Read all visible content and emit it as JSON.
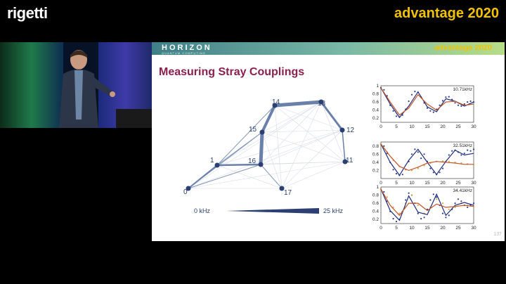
{
  "brand": {
    "left_logo": "rigetti",
    "right_logo": "advantage 2020"
  },
  "slide": {
    "header_logo": "HORIZON",
    "header_sub": "QUANTUM COMPUTING",
    "header_brand": "advantage 2020",
    "title": "Measuring Stray Couplings",
    "page_number": "137",
    "scale": {
      "min_label": "0 kHz",
      "max_label": "25 kHz"
    },
    "nodes": [
      "0",
      "1",
      "11",
      "12",
      "13",
      "14",
      "15",
      "16",
      "17"
    ],
    "colors": {
      "title": "#8b1f4f",
      "edge": "#3f5a8e",
      "node": "#2b3f72",
      "fit_blue": "#1f2d7a",
      "fit_orange": "#c1552b"
    }
  },
  "chart_data": [
    {
      "type": "line",
      "title": "10.71kHz",
      "x_ticks": [
        0,
        5,
        10,
        15,
        20,
        25,
        30
      ],
      "y_ticks": [
        0.2,
        0.4,
        0.6,
        0.8,
        1
      ],
      "xlim": [
        0,
        30
      ],
      "ylim": [
        0.1,
        1.0
      ],
      "series": [
        {
          "type": "scatter",
          "color": "#2b3f8e",
          "x": [
            0,
            1,
            2,
            3,
            4,
            5,
            6,
            7,
            8,
            9,
            10,
            11,
            12,
            13,
            14,
            15,
            16,
            17,
            18,
            19,
            20,
            21,
            22,
            23,
            24,
            25,
            26,
            27,
            28,
            29,
            30
          ],
          "y": [
            0.95,
            0.9,
            0.75,
            0.52,
            0.38,
            0.25,
            0.23,
            0.28,
            0.42,
            0.62,
            0.78,
            0.86,
            0.84,
            0.72,
            0.58,
            0.45,
            0.38,
            0.35,
            0.42,
            0.52,
            0.63,
            0.72,
            0.73,
            0.66,
            0.58,
            0.52,
            0.5,
            0.55,
            0.6,
            0.62,
            0.6
          ]
        },
        {
          "type": "line",
          "color": "#1f2d7a",
          "x": [
            0,
            3,
            6,
            9,
            12,
            15,
            18,
            21,
            24,
            27,
            30
          ],
          "y": [
            0.95,
            0.55,
            0.22,
            0.5,
            0.85,
            0.48,
            0.36,
            0.68,
            0.62,
            0.5,
            0.6
          ]
        },
        {
          "type": "line",
          "color": "#c1552b",
          "x": [
            0,
            3,
            6,
            9,
            12,
            15,
            18,
            21,
            24,
            27,
            30
          ],
          "y": [
            0.95,
            0.6,
            0.28,
            0.45,
            0.78,
            0.55,
            0.4,
            0.6,
            0.62,
            0.52,
            0.55
          ]
        }
      ]
    },
    {
      "type": "line",
      "title": "32.51kHz",
      "x_ticks": [
        0,
        5,
        10,
        15,
        20,
        25,
        30
      ],
      "y_ticks": [
        0.2,
        0.4,
        0.6,
        0.8
      ],
      "xlim": [
        0,
        30
      ],
      "ylim": [
        0.0,
        0.9
      ],
      "series": [
        {
          "type": "scatter",
          "color": "#2b3f8e",
          "x": [
            0,
            1,
            2,
            3,
            4,
            5,
            6,
            7,
            8,
            9,
            10,
            11,
            12,
            13,
            14,
            15,
            16,
            17,
            18,
            19,
            20,
            21,
            22,
            23,
            24,
            25,
            26,
            27,
            28,
            29,
            30
          ],
          "y": [
            0.85,
            0.8,
            0.62,
            0.4,
            0.22,
            0.12,
            0.08,
            0.1,
            0.22,
            0.42,
            0.6,
            0.72,
            0.65,
            0.5,
            0.6,
            0.42,
            0.25,
            0.15,
            0.1,
            0.15,
            0.25,
            0.42,
            0.58,
            0.68,
            0.7,
            0.65,
            0.58,
            0.62,
            0.7,
            0.68,
            0.72
          ]
        },
        {
          "type": "scatter",
          "color": "#e6a04a",
          "x": [
            0,
            2,
            4,
            6,
            8,
            10,
            12,
            14,
            16,
            18,
            20,
            22,
            24,
            26,
            28,
            30
          ],
          "y": [
            0.85,
            0.65,
            0.45,
            0.3,
            0.22,
            0.2,
            0.25,
            0.32,
            0.38,
            0.42,
            0.43,
            0.42,
            0.4,
            0.38,
            0.36,
            0.35
          ]
        },
        {
          "type": "line",
          "color": "#1f2d7a",
          "x": [
            0,
            3,
            6,
            9,
            12,
            15,
            18,
            21,
            24,
            27,
            30
          ],
          "y": [
            0.85,
            0.4,
            0.08,
            0.45,
            0.72,
            0.4,
            0.1,
            0.42,
            0.7,
            0.58,
            0.62
          ]
        },
        {
          "type": "line",
          "color": "#c1552b",
          "x": [
            0,
            3,
            6,
            9,
            12,
            15,
            18,
            21,
            24,
            27,
            30
          ],
          "y": [
            0.85,
            0.55,
            0.3,
            0.2,
            0.28,
            0.38,
            0.42,
            0.4,
            0.38,
            0.35,
            0.35
          ]
        }
      ]
    },
    {
      "type": "line",
      "title": "34.41kHz",
      "x_ticks": [
        0,
        5,
        10,
        15,
        20,
        25,
        30
      ],
      "y_ticks": [
        0.2,
        0.4,
        0.6,
        0.8,
        1
      ],
      "xlim": [
        0,
        30
      ],
      "ylim": [
        0.1,
        1.0
      ],
      "series": [
        {
          "type": "scatter",
          "color": "#2b3f8e",
          "x": [
            0,
            1,
            2,
            3,
            4,
            5,
            6,
            7,
            8,
            9,
            10,
            11,
            12,
            13,
            14,
            15,
            16,
            17,
            18,
            19,
            20,
            21,
            22,
            23,
            24,
            25,
            26,
            27,
            28,
            29,
            30
          ],
          "y": [
            0.95,
            0.88,
            0.65,
            0.4,
            0.22,
            0.15,
            0.2,
            0.4,
            0.68,
            0.85,
            0.8,
            0.6,
            0.35,
            0.22,
            0.25,
            0.45,
            0.68,
            0.82,
            0.75,
            0.55,
            0.35,
            0.25,
            0.3,
            0.45,
            0.6,
            0.7,
            0.65,
            0.55,
            0.5,
            0.55,
            0.6
          ]
        },
        {
          "type": "scatter",
          "color": "#e6a04a",
          "x": [
            0,
            2,
            4,
            6,
            8,
            10,
            12,
            14,
            16,
            18,
            20,
            22,
            24,
            26,
            28,
            30
          ],
          "y": [
            0.95,
            0.75,
            0.5,
            0.35,
            0.6,
            0.8,
            0.55,
            0.35,
            0.5,
            0.7,
            0.6,
            0.45,
            0.5,
            0.6,
            0.55,
            0.52
          ]
        },
        {
          "type": "line",
          "color": "#1f2d7a",
          "x": [
            0,
            3,
            6,
            9,
            12,
            15,
            18,
            21,
            24,
            27,
            30
          ],
          "y": [
            0.95,
            0.42,
            0.18,
            0.78,
            0.38,
            0.32,
            0.82,
            0.3,
            0.55,
            0.62,
            0.55
          ]
        },
        {
          "type": "line",
          "color": "#c1552b",
          "x": [
            0,
            3,
            6,
            9,
            12,
            15,
            18,
            21,
            24,
            27,
            30
          ],
          "y": [
            0.95,
            0.55,
            0.3,
            0.6,
            0.6,
            0.42,
            0.58,
            0.5,
            0.52,
            0.55,
            0.52
          ]
        }
      ]
    }
  ]
}
